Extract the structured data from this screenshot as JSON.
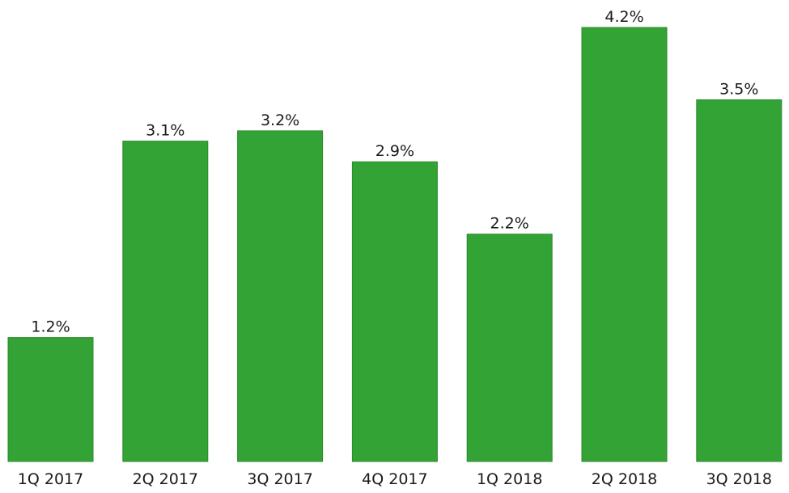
{
  "chart_data": {
    "type": "bar",
    "categories": [
      "1Q 2017",
      "2Q 2017",
      "3Q 2017",
      "4Q 2017",
      "1Q 2018",
      "2Q 2018",
      "3Q 2018"
    ],
    "values": [
      1.2,
      3.1,
      3.2,
      2.9,
      2.2,
      4.2,
      3.5
    ],
    "value_labels": [
      "1.2%",
      "3.1%",
      "3.2%",
      "2.9%",
      "2.2%",
      "4.2%",
      "3.5%"
    ],
    "title": "",
    "xlabel": "",
    "ylabel": "",
    "ylim": [
      0,
      4.2
    ],
    "grid": false,
    "bar_color": "#34a335",
    "bar_border_color": "#2a8a2b"
  }
}
